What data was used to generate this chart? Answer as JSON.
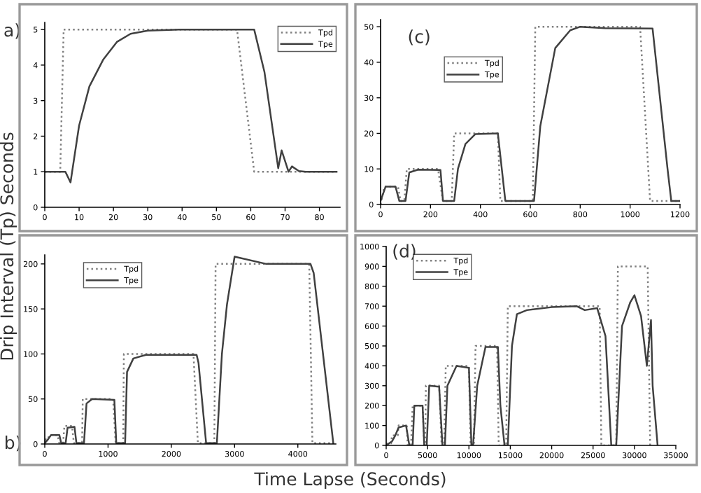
{
  "chart_data": [
    {
      "type": "line",
      "ylabel": "Drip Interval (Tp) Seconds",
      "annotations": [
        "a)"
      ],
      "xlim": [
        0,
        86
      ],
      "ylim": [
        0,
        5.2
      ],
      "xticks": [
        0,
        10,
        20,
        30,
        40,
        50,
        60,
        70,
        80
      ],
      "yticks": [
        0,
        1,
        2,
        3,
        4,
        5
      ],
      "legend": "top right",
      "grid": false,
      "series": [
        {
          "name": "Tpd",
          "color": "#808080",
          "line_style": "dotted",
          "x": [
            0,
            4.5,
            5.5,
            56,
            61,
            85
          ],
          "values": [
            1,
            1,
            5,
            5,
            1,
            1
          ]
        },
        {
          "name": "Tpe",
          "color": "#404040",
          "line_style": "solid",
          "x": [
            0,
            6,
            7.5,
            10,
            13,
            17,
            21,
            25,
            30,
            40,
            50,
            61,
            64,
            68,
            69,
            71,
            72,
            74,
            76,
            85
          ],
          "values": [
            1,
            1,
            0.7,
            2.3,
            3.4,
            4.15,
            4.65,
            4.88,
            4.97,
            5,
            5,
            5,
            3.8,
            1.1,
            1.6,
            1.0,
            1.15,
            1.02,
            1,
            1
          ]
        }
      ]
    },
    {
      "type": "line",
      "annotations": [
        "(c)"
      ],
      "xlim": [
        0,
        1200
      ],
      "ylim": [
        0,
        52
      ],
      "xticks": [
        0,
        200,
        400,
        600,
        800,
        1000,
        1200
      ],
      "yticks": [
        0,
        10,
        20,
        30,
        40,
        50
      ],
      "legend": "top left",
      "grid": false,
      "series": [
        {
          "name": "Tpd",
          "color": "#808080",
          "line_style": "dotted",
          "x": [
            0,
            15,
            70,
            80,
            95,
            105,
            230,
            250,
            285,
            295,
            470,
            480,
            610,
            620,
            1040,
            1080,
            1200
          ],
          "values": [
            0,
            5,
            5,
            1,
            1,
            10,
            10,
            1,
            1,
            20,
            20,
            1,
            1,
            50,
            50,
            1,
            1
          ]
        },
        {
          "name": "Tpe",
          "color": "#404040",
          "line_style": "solid",
          "x": [
            0,
            20,
            60,
            75,
            100,
            115,
            150,
            240,
            250,
            295,
            310,
            340,
            380,
            470,
            500,
            615,
            640,
            700,
            760,
            800,
            900,
            1090,
            1150,
            1165,
            1200
          ],
          "values": [
            1,
            5,
            5,
            1,
            1,
            9,
            9.8,
            9.7,
            1,
            1,
            10,
            17,
            19.8,
            20,
            1,
            1,
            22,
            44,
            49,
            50,
            49.6,
            49.5,
            10,
            1,
            1
          ]
        }
      ]
    },
    {
      "type": "line",
      "xlabel": "Time Lapse (Seconds)",
      "annotations": [
        "b)"
      ],
      "xlim": [
        0,
        4600
      ],
      "ylim": [
        0,
        210
      ],
      "xticks": [
        0,
        1000,
        2000,
        3000,
        4000
      ],
      "yticks": [
        0,
        50,
        100,
        150,
        200
      ],
      "legend": "top left",
      "grid": false,
      "series": [
        {
          "name": "Tpd",
          "color": "#808080",
          "line_style": "dotted",
          "x": [
            0,
            50,
            70,
            200,
            230,
            290,
            310,
            430,
            460,
            590,
            600,
            1080,
            1120,
            1240,
            1250,
            2350,
            2420,
            2680,
            2700,
            4180,
            4230,
            4550
          ],
          "values": [
            5,
            5,
            10,
            10,
            1,
            1,
            20,
            20,
            1,
            1,
            50,
            50,
            1,
            1,
            100,
            100,
            1,
            1,
            200,
            200,
            1,
            1
          ]
        },
        {
          "name": "Tpe",
          "color": "#404040",
          "line_style": "solid",
          "x": [
            0,
            50,
            100,
            230,
            260,
            330,
            360,
            470,
            500,
            620,
            660,
            750,
            1100,
            1130,
            1270,
            1300,
            1400,
            1600,
            2400,
            2430,
            2550,
            2720,
            2800,
            2880,
            3000,
            3500,
            4200,
            4250,
            4560
          ],
          "values": [
            1,
            5,
            10,
            10,
            1,
            1,
            18,
            19,
            1,
            1,
            45,
            50,
            49,
            1,
            1,
            80,
            95,
            99,
            99,
            90,
            1,
            1,
            100,
            155,
            208,
            200,
            200,
            190,
            1
          ]
        }
      ]
    },
    {
      "type": "line",
      "annotations": [
        "(d)"
      ],
      "xlim": [
        0,
        35000
      ],
      "ylim": [
        0,
        1000
      ],
      "xticks": [
        0,
        5000,
        10000,
        15000,
        20000,
        25000,
        30000,
        35000
      ],
      "yticks": [
        0,
        100,
        200,
        300,
        400,
        500,
        600,
        700,
        800,
        900,
        1000
      ],
      "legend": "top left",
      "grid": false,
      "series": [
        {
          "name": "Tpd",
          "color": "#808080",
          "line_style": "dotted",
          "x": [
            0,
            600,
            700,
            1400,
            1500,
            2500,
            2600,
            3000,
            3200,
            4400,
            4600,
            4700,
            4800,
            6400,
            6700,
            7000,
            7200,
            10000,
            10200,
            10600,
            10800,
            13400,
            13600,
            14500,
            14700,
            25800,
            26000,
            27800,
            28000,
            31600,
            31900
          ],
          "values": [
            10,
            10,
            50,
            50,
            100,
            100,
            0,
            0,
            200,
            200,
            0,
            0,
            300,
            300,
            0,
            0,
            400,
            400,
            0,
            0,
            500,
            500,
            0,
            0,
            700,
            700,
            0,
            0,
            900,
            900,
            0
          ]
        },
        {
          "name": "Tpe",
          "color": "#404040",
          "line_style": "solid",
          "x": [
            0,
            700,
            1100,
            1500,
            2400,
            2800,
            3200,
            3400,
            4400,
            4600,
            4900,
            5200,
            6400,
            6800,
            7100,
            7400,
            8500,
            10000,
            10300,
            10500,
            11000,
            12000,
            13500,
            13800,
            14300,
            14700,
            15200,
            15800,
            17000,
            20000,
            23000,
            24000,
            25500,
            26500,
            27200,
            27800,
            28500,
            29500,
            30000,
            30800,
            31500,
            32000,
            32200,
            32800
          ],
          "values": [
            0,
            20,
            50,
            90,
            100,
            0,
            0,
            200,
            200,
            0,
            0,
            300,
            295,
            0,
            0,
            300,
            400,
            390,
            0,
            0,
            300,
            495,
            495,
            200,
            0,
            0,
            500,
            660,
            680,
            695,
            700,
            680,
            690,
            550,
            0,
            0,
            600,
            720,
            755,
            650,
            400,
            630,
            300,
            0
          ]
        }
      ]
    }
  ]
}
